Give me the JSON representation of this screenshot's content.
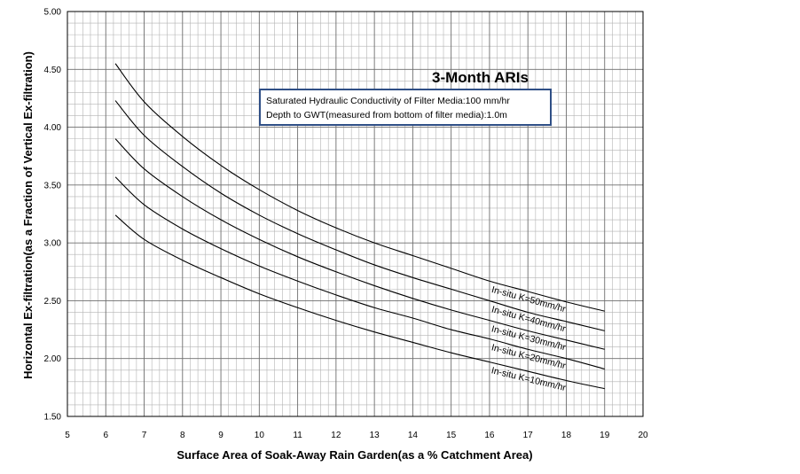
{
  "chart_data": {
    "type": "line",
    "title": "3-Month ARIs",
    "xlabel": "Surface Area of Soak-Away Rain Garden(as a % Catchment Area)",
    "ylabel": "Horizontal Ex-filtration(as a Fraction of Vertical Ex-filtration)",
    "xlim": [
      5,
      20
    ],
    "ylim": [
      1.5,
      5.0
    ],
    "x_ticks": [
      "5",
      "6",
      "7",
      "8",
      "9",
      "10",
      "11",
      "12",
      "13",
      "14",
      "15",
      "16",
      "17",
      "18",
      "19",
      "20"
    ],
    "y_ticks": [
      "1.50",
      "2.00",
      "2.50",
      "3.00",
      "3.50",
      "4.00",
      "4.50",
      "5.00"
    ],
    "grid": true,
    "annotation": {
      "lines": [
        "Saturated Hydraulic Conductivity of Filter Media:100 mm/hr",
        "Depth to GWT(measured from bottom of filter media):1.0m"
      ]
    },
    "x": [
      6.25,
      7,
      8,
      9,
      10,
      11,
      12,
      13,
      14,
      15,
      16,
      17,
      18,
      19
    ],
    "series": [
      {
        "name": "In-situ K=50mm/hr",
        "values": [
          4.55,
          4.22,
          3.92,
          3.67,
          3.46,
          3.28,
          3.13,
          3.0,
          2.89,
          2.78,
          2.67,
          2.58,
          2.49,
          2.41
        ]
      },
      {
        "name": "In-situ K=40mm/hr",
        "values": [
          4.23,
          3.93,
          3.66,
          3.43,
          3.24,
          3.08,
          2.94,
          2.81,
          2.7,
          2.6,
          2.5,
          2.4,
          2.32,
          2.24
        ]
      },
      {
        "name": "In-situ K=30mm/hr",
        "values": [
          3.9,
          3.64,
          3.4,
          3.2,
          3.03,
          2.88,
          2.75,
          2.63,
          2.52,
          2.42,
          2.33,
          2.24,
          2.16,
          2.08
        ]
      },
      {
        "name": "In-situ K=20mm/hr",
        "values": [
          3.57,
          3.33,
          3.12,
          2.95,
          2.8,
          2.67,
          2.55,
          2.44,
          2.35,
          2.25,
          2.17,
          2.08,
          2.0,
          1.91
        ]
      },
      {
        "name": "In-situ K=10mm/hr",
        "values": [
          3.24,
          3.03,
          2.85,
          2.7,
          2.56,
          2.44,
          2.33,
          2.23,
          2.14,
          2.05,
          1.97,
          1.89,
          1.81,
          1.74
        ]
      }
    ]
  }
}
